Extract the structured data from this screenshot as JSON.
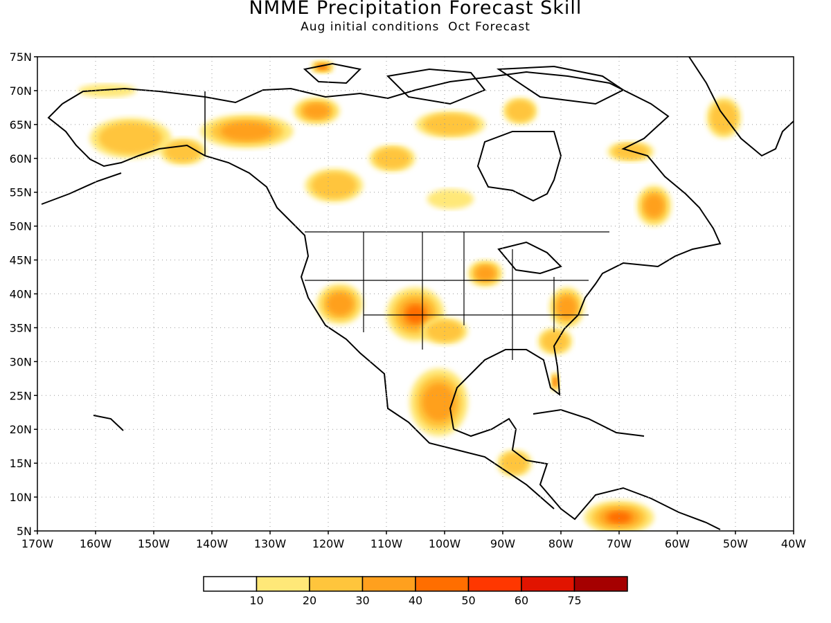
{
  "title": "NMME Precipitation Forecast Skill",
  "subtitle": "Aug initial conditions  Oct Forecast",
  "map": {
    "lon_range": [
      -170,
      -40
    ],
    "lat_range": [
      5,
      75
    ],
    "grid": true,
    "lat_labels": [
      "5N",
      "10N",
      "15N",
      "20N",
      "25N",
      "30N",
      "35N",
      "40N",
      "45N",
      "50N",
      "55N",
      "60N",
      "65N",
      "70N",
      "75N"
    ],
    "lon_labels": [
      "170W",
      "160W",
      "150W",
      "140W",
      "130W",
      "120W",
      "110W",
      "100W",
      "90W",
      "80W",
      "70W",
      "60W",
      "50W",
      "40W"
    ],
    "skill_regions": [
      {
        "name": "alaska-sw",
        "level": 2,
        "lon": -154,
        "lat": 63,
        "rx": 7,
        "ry": 3
      },
      {
        "name": "alaska-nw",
        "level": 1,
        "lon": -158,
        "lat": 70,
        "rx": 5,
        "ry": 1
      },
      {
        "name": "alaska-se",
        "level": 2,
        "lon": -145,
        "lat": 61,
        "rx": 4,
        "ry": 2
      },
      {
        "name": "yukon",
        "level": 3,
        "lon": -134,
        "lat": 64,
        "rx": 8,
        "ry": 2.5
      },
      {
        "name": "nw-territories",
        "level": 3,
        "lon": -122,
        "lat": 67,
        "rx": 4,
        "ry": 2
      },
      {
        "name": "banks-island",
        "level": 4,
        "lon": -121,
        "lat": 73.5,
        "rx": 2,
        "ry": 1
      },
      {
        "name": "bc-north",
        "level": 2,
        "lon": -119,
        "lat": 56,
        "rx": 5,
        "ry": 2.5
      },
      {
        "name": "saskatchewan",
        "level": 2,
        "lon": -109,
        "lat": 60,
        "rx": 4,
        "ry": 2
      },
      {
        "name": "nunavut",
        "level": 2,
        "lon": -99,
        "lat": 65,
        "rx": 6,
        "ry": 2
      },
      {
        "name": "baffin",
        "level": 2,
        "lon": -87,
        "lat": 67,
        "rx": 3,
        "ry": 2
      },
      {
        "name": "ontario-north",
        "level": 1,
        "lon": -99,
        "lat": 54,
        "rx": 4,
        "ry": 1.5
      },
      {
        "name": "quebec-east",
        "level": 2,
        "lon": -68,
        "lat": 61,
        "rx": 4,
        "ry": 1.5
      },
      {
        "name": "labrador",
        "level": 3,
        "lon": -64,
        "lat": 53,
        "rx": 3,
        "ry": 3
      },
      {
        "name": "greenland",
        "level": 2,
        "lon": -52,
        "lat": 66,
        "rx": 3,
        "ry": 3
      },
      {
        "name": "california",
        "level": 3,
        "lon": -118,
        "lat": 38.5,
        "rx": 4,
        "ry": 3
      },
      {
        "name": "colorado",
        "level": 4,
        "lon": -105,
        "lat": 37,
        "rx": 5,
        "ry": 4
      },
      {
        "name": "iowa",
        "level": 3,
        "lon": -93,
        "lat": 43,
        "rx": 3,
        "ry": 2
      },
      {
        "name": "oklahoma",
        "level": 2,
        "lon": -100,
        "lat": 34.5,
        "rx": 4,
        "ry": 2
      },
      {
        "name": "virginia",
        "level": 3,
        "lon": -79,
        "lat": 38,
        "rx": 3,
        "ry": 3
      },
      {
        "name": "carolinas",
        "level": 2,
        "lon": -81,
        "lat": 33,
        "rx": 3,
        "ry": 2
      },
      {
        "name": "florida",
        "level": 4,
        "lon": -81,
        "lat": 27,
        "rx": 0.8,
        "ry": 1.5
      },
      {
        "name": "mexico",
        "level": 3,
        "lon": -101,
        "lat": 24,
        "rx": 5,
        "ry": 5
      },
      {
        "name": "central-america",
        "level": 2,
        "lon": -88,
        "lat": 15,
        "rx": 3,
        "ry": 2
      },
      {
        "name": "venezuela",
        "level": 4,
        "lon": -70,
        "lat": 7,
        "rx": 6,
        "ry": 2.5
      }
    ]
  },
  "colorbar": {
    "levels": [
      "10",
      "20",
      "30",
      "40",
      "50",
      "60",
      "75"
    ],
    "colors": [
      "#ffffff",
      "#ffe878",
      "#ffc53c",
      "#ffa01e",
      "#ff6e00",
      "#ff3700",
      "#e11400",
      "#a50000"
    ]
  }
}
